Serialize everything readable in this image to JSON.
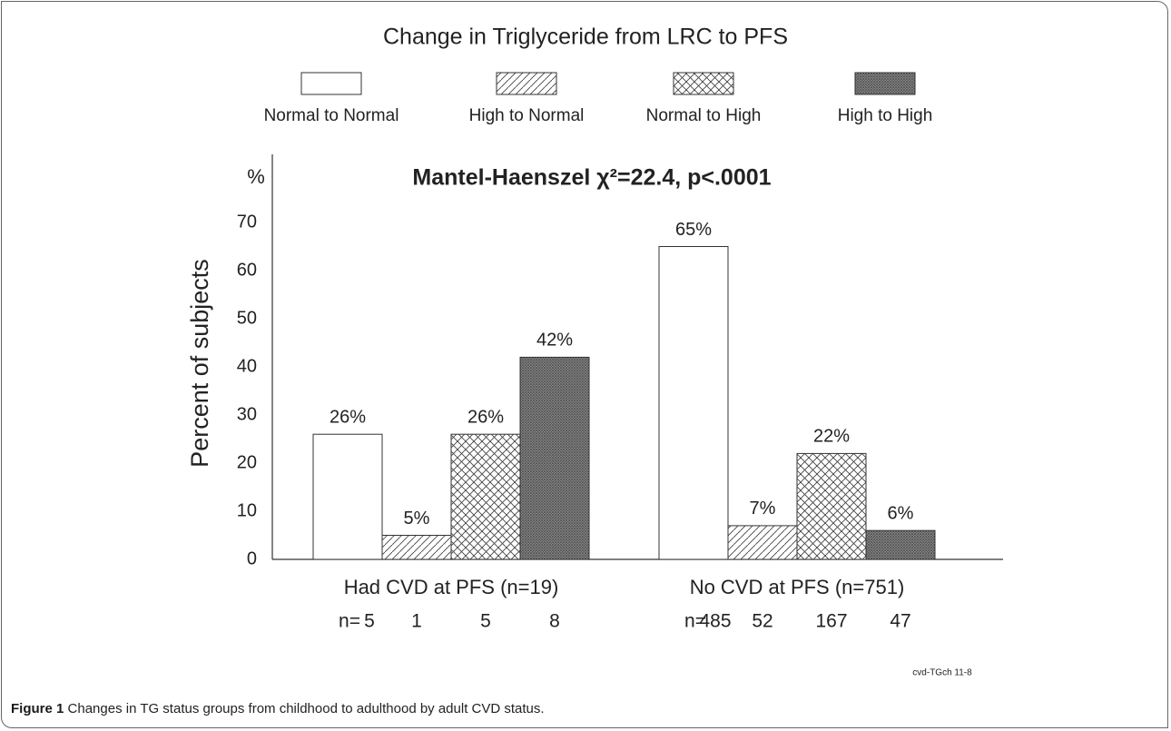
{
  "chart_data": {
    "type": "bar",
    "title": "Change in Triglyceride from LRC to PFS",
    "annotation": "Mantel-Haenszel χ²=22.4, p<.0001",
    "y_axis_label": "Percent of subjects",
    "y_unit": "%",
    "categories": [
      "Had CVD at PFS (n=19)",
      "No CVD at PFS (n=751)"
    ],
    "n_label": "n=",
    "series": [
      {
        "name": "Normal to Normal",
        "color": "#ffffff",
        "pattern": "none",
        "values": [
          26,
          65
        ],
        "value_labels": [
          "26%",
          "65%"
        ],
        "n": [
          5,
          485
        ]
      },
      {
        "name": "High to Normal",
        "color": "#444444",
        "pattern": "hatch",
        "values": [
          5,
          7
        ],
        "value_labels": [
          "5%",
          "7%"
        ],
        "n": [
          1,
          52
        ]
      },
      {
        "name": "Normal to High",
        "color": "#444444",
        "pattern": "crosshatch",
        "values": [
          26,
          22
        ],
        "value_labels": [
          "26%",
          "22%"
        ],
        "n": [
          5,
          167
        ]
      },
      {
        "name": "High to High",
        "color": "#555555",
        "pattern": "dense",
        "values": [
          42,
          6
        ],
        "value_labels": [
          "42%",
          "6%"
        ],
        "n": [
          8,
          47
        ]
      }
    ],
    "ylim": [
      0,
      70
    ],
    "yticks": [
      0,
      10,
      20,
      30,
      40,
      50,
      60,
      70
    ],
    "grid": false
  },
  "code": "cvd-TGch 11-8",
  "caption": {
    "label": "Figure 1",
    "text": "Changes in TG status groups from childhood to adulthood by adult CVD status."
  }
}
